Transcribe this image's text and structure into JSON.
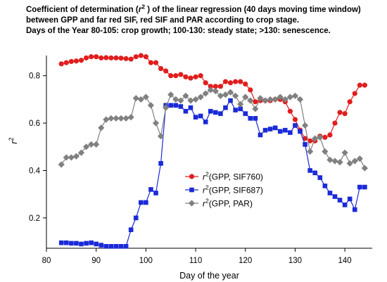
{
  "chart_data": {
    "type": "line",
    "title": {
      "line1_prefix": "Coefficient of determination (",
      "line1_symbol": "r",
      "line1_sup": "2",
      "line1_suffix": " ) of the linear regression (40 days moving time window)",
      "line2": "between GPP and far red SIF, red SIF and PAR according to crop stage.",
      "line3": "Days of the Year 80-105: crop growth; 100-130: steady state; >130: senescence."
    },
    "xlabel": "Day of the year",
    "ylabel": "r",
    "ylabel_sup": "2",
    "xlim": [
      80,
      145.5
    ],
    "ylim": [
      0.072,
      0.885
    ],
    "xticks": [
      80,
      90,
      100,
      110,
      120,
      130,
      140
    ],
    "xtick_labels": [
      "80",
      "90",
      "100",
      "110",
      "120",
      "130",
      "140"
    ],
    "yticks": [
      0.2,
      0.4,
      0.6,
      0.8
    ],
    "ytick_labels": [
      "0.2",
      "0.4",
      "0.6",
      "0.8"
    ],
    "grid": false,
    "legend_position": "center",
    "series": [
      {
        "name_symbol": "r",
        "name_sup": "2",
        "name_rest": "(GPP, SIF760)",
        "color": "#e01e1e",
        "marker": "circle",
        "x": [
          83,
          84,
          85,
          86,
          87,
          88,
          89,
          90,
          91,
          92,
          93,
          94,
          95,
          96,
          97,
          98,
          99,
          100,
          101,
          102,
          103,
          104,
          105,
          106,
          107,
          108,
          109,
          110,
          111,
          112,
          113,
          114,
          115,
          116,
          117,
          118,
          119,
          120,
          121,
          122,
          123,
          124,
          125,
          126,
          127,
          128,
          129,
          130,
          131,
          132,
          133,
          134,
          135,
          136,
          137,
          138,
          139,
          140,
          141,
          142,
          143,
          144
        ],
        "y": [
          0.85,
          0.855,
          0.86,
          0.862,
          0.865,
          0.875,
          0.88,
          0.88,
          0.875,
          0.876,
          0.875,
          0.875,
          0.874,
          0.872,
          0.87,
          0.88,
          0.885,
          0.88,
          0.855,
          0.855,
          0.83,
          0.82,
          0.8,
          0.8,
          0.805,
          0.795,
          0.79,
          0.795,
          0.8,
          0.77,
          0.755,
          0.755,
          0.755,
          0.775,
          0.77,
          0.775,
          0.775,
          0.765,
          0.74,
          0.69,
          0.695,
          0.695,
          0.695,
          0.7,
          0.7,
          0.69,
          0.65,
          0.615,
          0.57,
          0.535,
          0.525,
          0.525,
          0.545,
          0.54,
          0.55,
          0.6,
          0.645,
          0.64,
          0.69,
          0.725,
          0.76,
          0.76
        ]
      },
      {
        "name_symbol": "r",
        "name_sup": "2",
        "name_rest": "(GPP, SIF687)",
        "color": "#1a2ad8",
        "marker": "square",
        "x": [
          83,
          84,
          85,
          86,
          87,
          88,
          89,
          90,
          91,
          92,
          93,
          94,
          95,
          96,
          97,
          98,
          99,
          100,
          101,
          102,
          103,
          104,
          105,
          106,
          107,
          108,
          109,
          110,
          111,
          112,
          113,
          114,
          115,
          116,
          117,
          118,
          119,
          120,
          121,
          122,
          123,
          124,
          125,
          126,
          127,
          128,
          129,
          130,
          131,
          132,
          133,
          134,
          135,
          136,
          137,
          138,
          139,
          140,
          141,
          142,
          143,
          144
        ],
        "y": [
          0.095,
          0.095,
          0.093,
          0.093,
          0.09,
          0.093,
          0.095,
          0.09,
          0.085,
          0.08,
          0.08,
          0.08,
          0.08,
          0.08,
          0.15,
          0.2,
          0.265,
          0.265,
          0.32,
          0.305,
          0.43,
          0.675,
          0.675,
          0.675,
          0.67,
          0.65,
          0.665,
          0.625,
          0.63,
          0.605,
          0.65,
          0.645,
          0.64,
          0.665,
          0.695,
          0.655,
          0.66,
          0.64,
          0.62,
          0.62,
          0.55,
          0.57,
          0.575,
          0.58,
          0.565,
          0.57,
          0.56,
          0.59,
          0.565,
          0.51,
          0.4,
          0.39,
          0.37,
          0.335,
          0.305,
          0.29,
          0.275,
          0.255,
          0.28,
          0.235,
          0.33,
          0.33
        ]
      },
      {
        "name_symbol": "r",
        "name_sup": "2",
        "name_rest": "(GPP, PAR)",
        "color": "#808080",
        "marker": "diamond",
        "x": [
          83,
          84,
          85,
          86,
          87,
          88,
          89,
          90,
          91,
          92,
          93,
          94,
          95,
          96,
          97,
          98,
          99,
          100,
          101,
          102,
          103,
          104,
          105,
          106,
          107,
          108,
          109,
          110,
          111,
          112,
          113,
          114,
          115,
          116,
          117,
          118,
          119,
          120,
          121,
          122,
          123,
          124,
          125,
          126,
          127,
          128,
          129,
          130,
          131,
          132,
          133,
          134,
          135,
          136,
          137,
          138,
          139,
          140,
          141,
          142,
          143,
          144
        ],
        "y": [
          0.425,
          0.455,
          0.455,
          0.46,
          0.475,
          0.5,
          0.51,
          0.51,
          0.58,
          0.615,
          0.62,
          0.62,
          0.62,
          0.62,
          0.625,
          0.705,
          0.7,
          0.71,
          0.675,
          0.6,
          0.545,
          0.665,
          0.72,
          0.7,
          0.695,
          0.715,
          0.695,
          0.7,
          0.71,
          0.725,
          0.74,
          0.735,
          0.715,
          0.72,
          0.73,
          0.715,
          0.68,
          0.71,
          0.695,
          0.66,
          0.705,
          0.695,
          0.7,
          0.7,
          0.71,
          0.7,
          0.71,
          0.715,
          0.7,
          0.59,
          0.48,
          0.535,
          0.54,
          0.48,
          0.445,
          0.44,
          0.435,
          0.475,
          0.43,
          0.44,
          0.45,
          0.41
        ]
      }
    ]
  }
}
